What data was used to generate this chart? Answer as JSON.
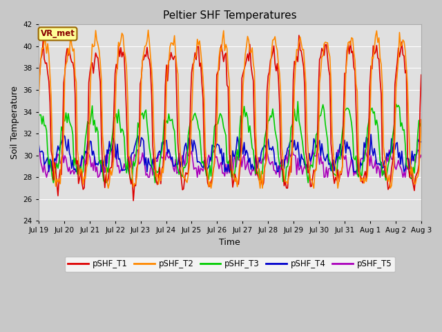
{
  "title": "Peltier SHF Temperatures",
  "xlabel": "Time",
  "ylabel": "Soil Temperature",
  "ylim": [
    24,
    42
  ],
  "yticks": [
    24,
    26,
    28,
    30,
    32,
    34,
    36,
    38,
    40,
    42
  ],
  "fig_bg_color": "#c8c8c8",
  "plot_bg_color": "#e0e0e0",
  "annotation_text": "VR_met",
  "annotation_bg": "#ffff99",
  "annotation_border": "#996600",
  "annotation_text_color": "#880000",
  "series": {
    "pSHF_T1": {
      "color": "#dd0000",
      "lw": 1.2
    },
    "pSHF_T2": {
      "color": "#ff8800",
      "lw": 1.2
    },
    "pSHF_T3": {
      "color": "#00cc00",
      "lw": 1.2
    },
    "pSHF_T4": {
      "color": "#0000cc",
      "lw": 1.2
    },
    "pSHF_T5": {
      "color": "#aa00bb",
      "lw": 1.2
    }
  },
  "x_tick_labels": [
    "Jul 19",
    "Jul 20",
    "Jul 21",
    "Jul 22",
    "Jul 23",
    "Jul 24",
    "Jul 25",
    "Jul 26",
    "Jul 27",
    "Jul 28",
    "Jul 29",
    "Jul 30",
    "Jul 31",
    "Aug 1",
    "Aug 2",
    "Aug 3"
  ],
  "n_points": 336,
  "n_days": 16
}
